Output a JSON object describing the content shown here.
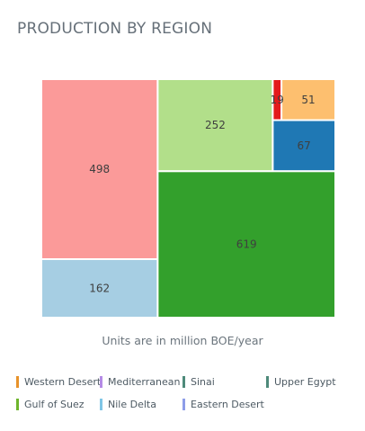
{
  "title": "PRODUCTION BY REGION",
  "footnote": "Units are in million BOE/year",
  "chart_data": {
    "type": "treemap",
    "title": "PRODUCTION BY REGION",
    "unit_note": "Units are in million BOE/year",
    "legend_position": "bottom",
    "items": [
      {
        "name": "Gulf of Suez",
        "value": 619,
        "color": "#33a02c",
        "label": "619"
      },
      {
        "name": "Mediterranean",
        "value": 498,
        "color": "#fb9a99",
        "label": "498"
      },
      {
        "name": "Western Desert",
        "value": 252,
        "color": "#b2df8a",
        "label": "252"
      },
      {
        "name": "Nile Delta",
        "value": 162,
        "color": "#a6cee3",
        "label": "162"
      },
      {
        "name": "Sinai",
        "value": 67,
        "color": "#1f78b4",
        "label": "67"
      },
      {
        "name": "Upper Egypt",
        "value": 51,
        "color": "#fdbf6f",
        "label": "51"
      },
      {
        "name": "Eastern Desert",
        "value": 19,
        "color": "#e31a1c",
        "label": "19"
      }
    ]
  },
  "legend": [
    {
      "label": "Western Desert",
      "color": "#e8922a"
    },
    {
      "label": "Mediterranean",
      "color": "#b58be6"
    },
    {
      "label": "Sinai",
      "color": "#4e8a7a"
    },
    {
      "label": "Upper Egypt",
      "color": "#4e8a7a"
    },
    {
      "label": "Gulf of Suez",
      "color": "#6eb52c"
    },
    {
      "label": "Nile Delta",
      "color": "#7fc6e6"
    },
    {
      "label": "Eastern Desert",
      "color": "#8d9de8"
    }
  ]
}
